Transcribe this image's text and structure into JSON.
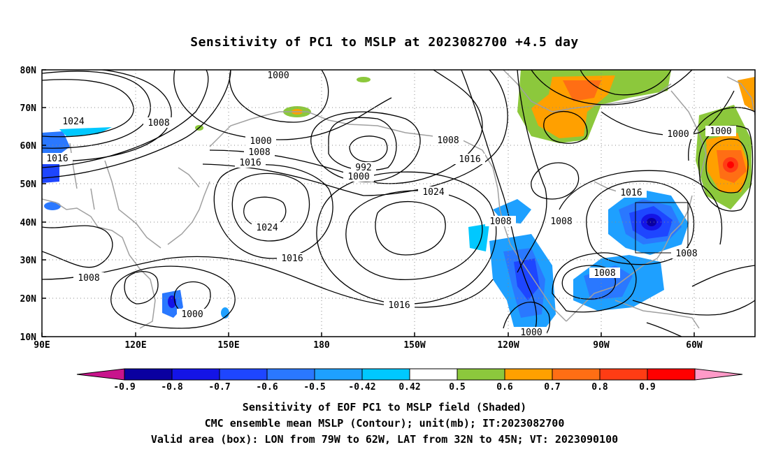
{
  "title": "Sensitivity of PC1 to MSLP at 2023082700 +4.5 day",
  "map": {
    "lat_labels": [
      "80N",
      "70N",
      "60N",
      "50N",
      "40N",
      "30N",
      "20N",
      "10N"
    ],
    "lon_labels": [
      "90E",
      "120E",
      "150E",
      "180",
      "150W",
      "120W",
      "90W",
      "60W"
    ],
    "contour_labels": [
      "1000",
      "1024",
      "1008",
      "1000",
      "1008",
      "1016",
      "992",
      "1000",
      "1016",
      "1024",
      "1024",
      "1008",
      "1008",
      "1016",
      "1000",
      "1008",
      "1016",
      "1008",
      "1000",
      "1016",
      "1008",
      "1008",
      "1016",
      "1000"
    ],
    "valid_box": {
      "lon_west": -79,
      "lon_east": -62,
      "lat_south": 32,
      "lat_north": 45
    }
  },
  "colorbar": {
    "labels": [
      "-0.9",
      "-0.8",
      "-0.7",
      "-0.6",
      "-0.5",
      "-0.42",
      "0.42",
      "0.5",
      "0.6",
      "0.7",
      "0.8",
      "0.9"
    ],
    "colors": [
      "#0a00a0",
      "#1414e6",
      "#1e46ff",
      "#2a78ff",
      "#1ea0ff",
      "#00c8ff",
      "#ffffff",
      "#8cc83c",
      "#ffa000",
      "#ff6e14",
      "#ff3c14",
      "#ff0000"
    ],
    "low_triangle_color": "#c8148c",
    "high_triangle_color": "#ff9ac8"
  },
  "captions": [
    "Sensitivity of EOF PC1 to MSLP field (Shaded)",
    "CMC ensemble mean MSLP (Contour); unit(mb); IT:2023082700",
    "Valid area (box): LON from 79W to 62W, LAT from 32N to 45N; VT: 2023090100"
  ]
}
